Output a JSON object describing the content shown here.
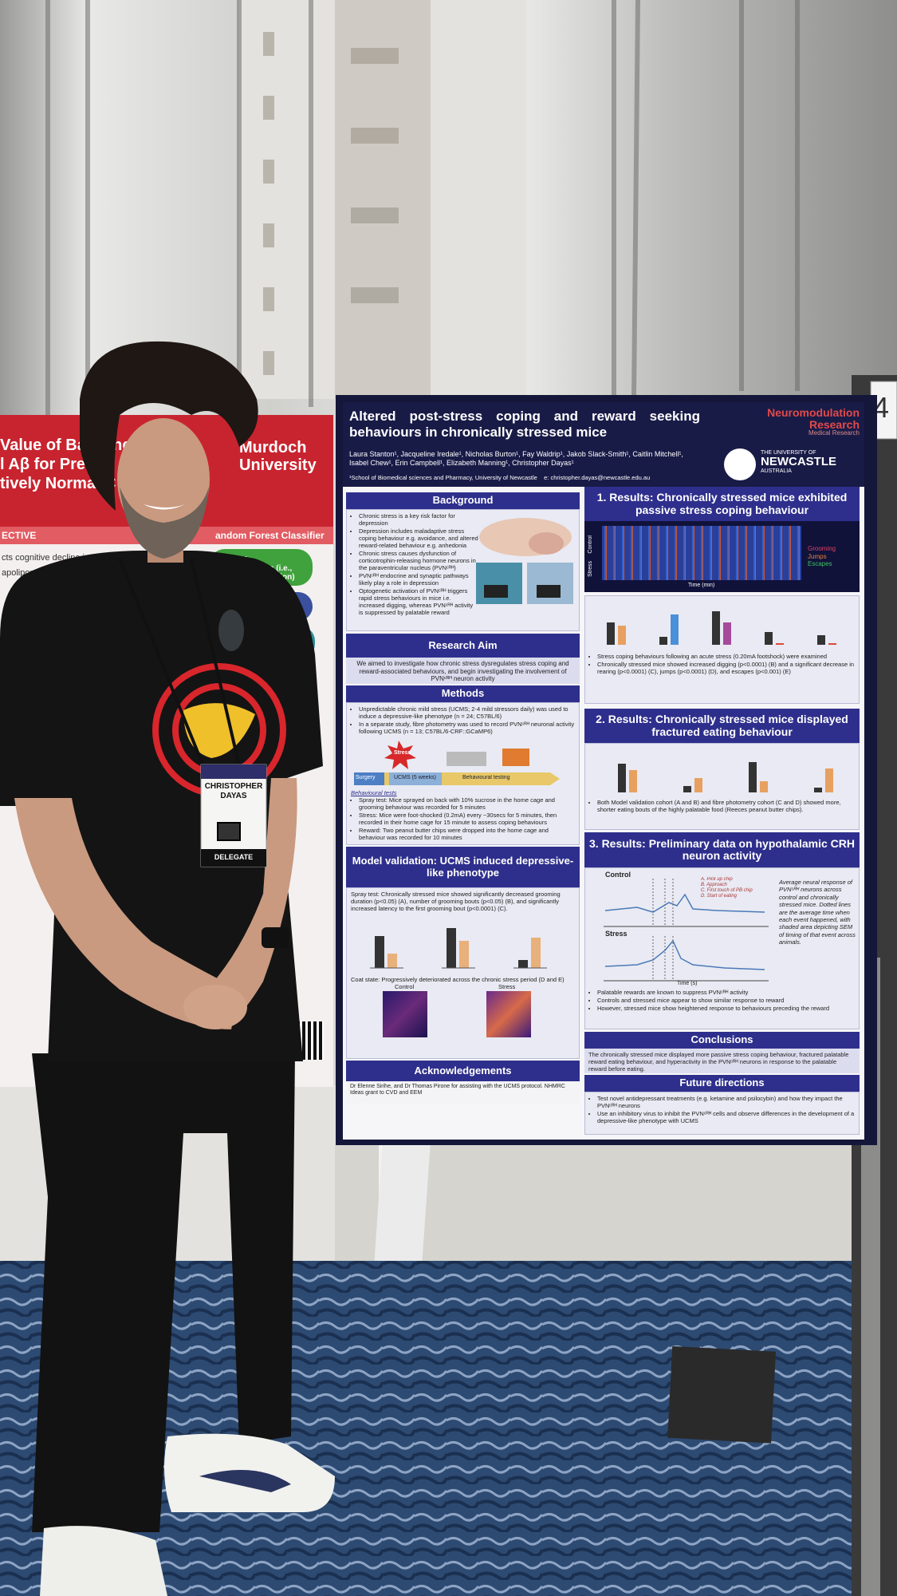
{
  "stand_number": "4",
  "left_poster": {
    "title_lines": [
      "Value of Baseline",
      "l Aβ for Predict",
      "tively Normal C"
    ],
    "university_lines": [
      "Murdoch",
      "University"
    ],
    "section": "ECTIVE",
    "bullets": [
      "cts cognitive decline in",
      "apolipoprot"
    ],
    "classifier": "andom Forest Classifier",
    "model1": "Model 1: Demographics (i.e., age, sex, education)",
    "model2": "l 1 + Cognitive"
  },
  "badge": {
    "first_name": "CHRISTOPHER",
    "last_name": "DAYAS",
    "role": "DELEGATE"
  },
  "poster": {
    "title": "Altered post-stress coping and reward seeking behaviours in chronically stressed mice",
    "authors": "Laura Stanton¹, Jacqueline Iredale¹, Nicholas Burton¹, Fay Waldrip¹, Jakob Slack-Smith¹, Caitlin Mitchell¹, Isabel Chew¹, Erin Campbell¹, Elizabeth Manning¹, Christopher Dayas¹",
    "affiliation": "¹School of Biomedical sciences and Pharmacy, University of Newcastle    e: christopher.dayas@newcastle.edu.au",
    "logo_lines": [
      "Neuromodulation",
      "Research",
      "Medical Research"
    ],
    "university": [
      "THE UNIVERSITY OF",
      "NEWCASTLE",
      "AUSTRALIA"
    ],
    "background": {
      "heading": "Background",
      "bullets": [
        "Chronic stress is a key risk factor for depression",
        "Depression includes maladaptive stress coping behaviour e.g. avoidance, and altered reward-related behaviour e.g. anhedonia",
        "Chronic stress causes dysfunction of corticotrophin-releasing hormone neurons in the paraventricular nucleus (PVNᶜᴿᴴ)",
        "PVNᶜᴿᴴ endocrine and synaptic pathways likely play a role in depression",
        "Optogenetic activation of PVNᶜᴿᴴ triggers rapid stress behaviours in mice i.e. increased digging, whereas PVNᶜᴿᴴ activity is suppressed by palatable reward"
      ]
    },
    "aim": {
      "heading": "Research Aim",
      "text": "We aimed to investigate how chronic stress dysregulates stress coping and reward-associated behaviours, and begin investigating the involvement of PVNᶜᴿᴴ neuron activity"
    },
    "methods": {
      "heading": "Methods",
      "bullets": [
        "Unpredictable chronic mild stress (UCMS; 2-4 mild stressors daily) was used to induce a depressive-like phenotype (n = 24; C57BL/6)",
        "In a separate study, fibre photometry was used to record PVNᶜᴿᴴ neuronal activity following UCMS (n = 13; C57BL/6-CRF::GCaMP6)"
      ],
      "timeline": [
        "Surgery",
        "Stress",
        "UCMS (5 weeks)",
        "Behavioural testing"
      ],
      "tests_heading": "Behavioural tests",
      "tests": [
        "Spray test: Mice sprayed on back with 10% sucrose in the home cage and grooming behaviour was recorded for 5 minutes",
        "Stress: Mice were foot-shocked (0.2mA) every ~30secs for 5 minutes, then recorded in their home cage for 15 minute to assess coping behaviours",
        "Reward: Two peanut butter chips were dropped into the home cage and behaviour was recorded for 10 minutes"
      ]
    },
    "validation": {
      "heading": "Model validation: UCMS induced depressive-like phenotype",
      "spray": "Spray test: Chronically stressed mice showed significantly decreased grooming duration (p<0.05) (A), number of grooming bouts (p<0.05) (B), and significantly increased latency to the first grooming bout (p<0.0001) (C).",
      "coat": "Coat state: Progressively deteriorated across the chronic stress period (D and E)",
      "heatmaps": [
        "Control",
        "Stress"
      ]
    },
    "acknowledgements": {
      "heading": "Acknowledgements",
      "text": "Dr Elenne Sirihe, and Dr Thomas Pirone for assisting with the UCMS protocol. NHMRC Ideas grant to CVD and EEM"
    },
    "results1": {
      "heading": "1. Results: Chronically stressed mice exhibited passive stress coping behaviour",
      "legend": [
        "Grooming",
        "Jumps",
        "Escapes"
      ],
      "axis": "Time (min)",
      "rows": [
        "Control",
        "Stress"
      ],
      "bullets": [
        "Stress coping behaviours following an acute stress (0.20mA footshock) were examined",
        "Chronically stressed mice showed increased digging (p<0.0001) (B) and a significant decrease in rearing (p<0.0001) (C), jumps (p<0.0001) (D), and escapes (p<0.001) (E)"
      ]
    },
    "results2": {
      "heading": "2. Results: Chronically stressed mice displayed fractured eating behaviour",
      "bullets": [
        "Both Model validation cohort (A and B) and fibre photometry cohort (C and D) showed more, shorter eating bouts of the highly palatable food (Reeces peanut butter chips)."
      ]
    },
    "results3": {
      "heading": "3. Results: Preliminary data on hypothalamic CRH neuron activity",
      "panels": [
        "Control",
        "Stress"
      ],
      "axis": "Time (s)",
      "events": [
        "A. Pick up chip",
        "B. Approach",
        "C. First touch of PB chip",
        "D. Start of eating"
      ],
      "note": "Average neural response of PVNᶜᴿᴴ neurons across control and chronically stressed mice. Dotted lines are the average time when each event happened, with shaded area depicting SEM of timing of that event across animals.",
      "bullets": [
        "Palatable rewards are known to suppress PVNᶜᴿᴴ activity",
        "Controls and stressed mice appear to show similar response to reward",
        "However, stressed mice show heightened response to behaviours preceding the reward"
      ]
    },
    "conclusions": {
      "heading": "Conclusions",
      "text": "The chronically stressed mice displayed more passive stress coping behaviour, fractured palatable reward eating behaviour, and hyperactivity in the PVNᶜᴿᴴ neurons in response to the palatable reward before eating."
    },
    "future": {
      "heading": "Future directions",
      "bullets": [
        "Test novel antidepressant treatments (e.g. ketamine and psilocybin) and how they impact the PVNᶜᴿᴴ neurons",
        "Use an inhibitory virus to inhibit the PVNᶜᴿᴴ cells and observe differences in the development of a depressive-like phenotype with UCMS"
      ]
    }
  }
}
